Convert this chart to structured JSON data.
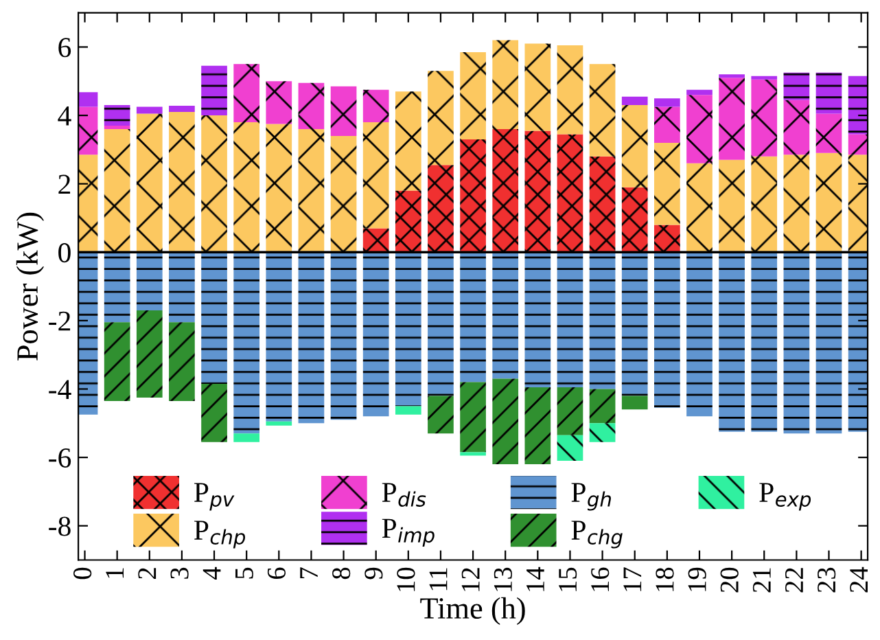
{
  "chart_data": {
    "type": "bar",
    "stacked": true,
    "xlabel": "Time (h)",
    "ylabel": "Power (kW)",
    "x": [
      0,
      1,
      2,
      3,
      4,
      5,
      6,
      7,
      8,
      9,
      10,
      11,
      12,
      13,
      14,
      15,
      16,
      17,
      18,
      19,
      20,
      21,
      22,
      23,
      24
    ],
    "xlim": [
      -0.2,
      24.2
    ],
    "xticks": [
      0,
      1,
      2,
      3,
      4,
      5,
      6,
      7,
      8,
      9,
      10,
      11,
      12,
      13,
      14,
      15,
      16,
      17,
      18,
      19,
      20,
      21,
      22,
      23,
      24
    ],
    "ylim": [
      -9,
      7
    ],
    "yticks": [
      -8,
      -6,
      -4,
      -2,
      0,
      2,
      4,
      6
    ],
    "legend": "bottom",
    "grid": false,
    "ref_lines": [
      {
        "axis": "y",
        "value": 0,
        "color": "#000000"
      }
    ],
    "series": [
      {
        "name": "P$_{pv}$",
        "color": "#f03030",
        "values": [
          0,
          0,
          0,
          0,
          0,
          0,
          0,
          0,
          0,
          0.7,
          1.8,
          2.55,
          3.3,
          3.6,
          3.55,
          3.45,
          2.8,
          1.9,
          0.8,
          0,
          0,
          0,
          0,
          0,
          0
        ]
      },
      {
        "name": "P$_{chp}$",
        "color": "#fcc860",
        "values": [
          2.85,
          3.6,
          4.05,
          4.1,
          4.0,
          3.8,
          3.75,
          3.6,
          3.4,
          3.1,
          2.9,
          2.75,
          2.55,
          2.6,
          2.55,
          2.6,
          2.7,
          2.4,
          2.4,
          2.6,
          2.7,
          2.8,
          2.85,
          2.9,
          2.85
        ]
      },
      {
        "name": "P$_{dis}$",
        "color": "#f040d0",
        "values": [
          1.4,
          0.1,
          0,
          0,
          0,
          1.7,
          1.25,
          1.35,
          1.45,
          0.95,
          0,
          0,
          0,
          0,
          0,
          0,
          0,
          0,
          1.05,
          2.0,
          2.4,
          2.25,
          1.6,
          1.15,
          0.6
        ]
      },
      {
        "name": "P$_{imp}$",
        "color": "#b030f0",
        "values": [
          0.43,
          0.6,
          0.2,
          0.18,
          1.45,
          0,
          0,
          0,
          0,
          0,
          0,
          0,
          0,
          0,
          0,
          0,
          0,
          0.25,
          0.25,
          0.15,
          0.1,
          0.1,
          0.8,
          1.2,
          1.7
        ]
      },
      {
        "name": "P$_{gh}$",
        "color": "#6095d0",
        "values": [
          -4.75,
          -2.05,
          -1.7,
          -2.05,
          -3.85,
          -5.3,
          -4.95,
          -5.0,
          -4.9,
          -4.8,
          -4.5,
          -4.2,
          -3.8,
          -3.7,
          -3.95,
          -3.95,
          -4.0,
          -4.2,
          -4.55,
          -4.8,
          -5.25,
          -5.25,
          -5.3,
          -5.3,
          -5.25
        ]
      },
      {
        "name": "P$_{chg}$",
        "color": "#309030",
        "values": [
          0,
          -2.3,
          -2.55,
          -2.3,
          -1.7,
          0,
          0,
          0,
          0,
          0,
          0,
          -1.1,
          -2.05,
          -2.5,
          -2.25,
          -1.4,
          -1.0,
          -0.4,
          0,
          0,
          0,
          0,
          0,
          0,
          0
        ]
      },
      {
        "name": "P$_{exp}$",
        "color": "#30f0a0",
        "values": [
          0,
          0,
          0,
          0,
          0,
          -0.25,
          -0.12,
          0,
          0,
          0,
          -0.25,
          0,
          -0.1,
          0,
          0,
          -0.75,
          -0.55,
          0,
          0,
          0,
          0,
          0,
          0,
          0,
          0
        ]
      }
    ]
  }
}
